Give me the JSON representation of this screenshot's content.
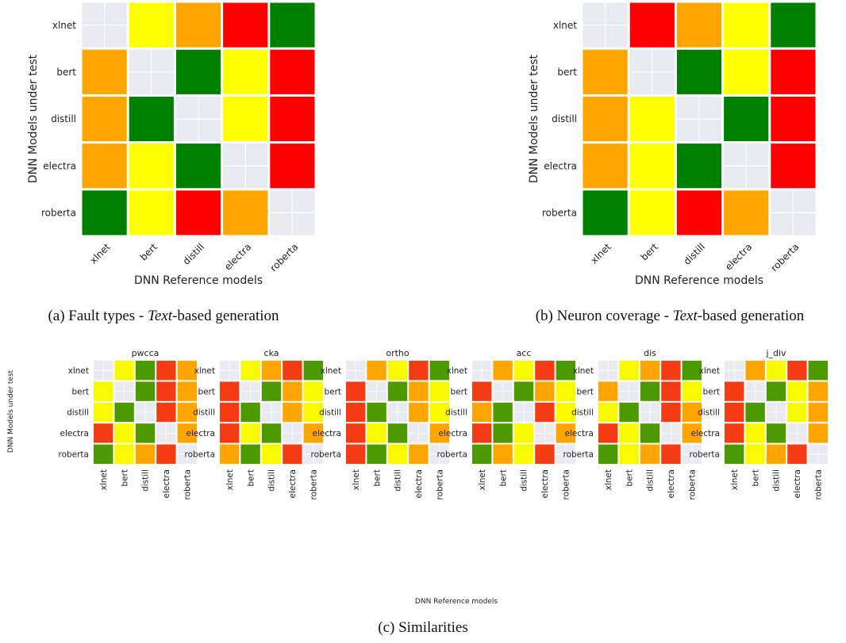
{
  "chart_data": [
    {
      "type": "heatmap",
      "id": "a",
      "caption": {
        "prefix": "(a) Fault types - ",
        "emphasis": "Text",
        "suffix": "-based generation"
      },
      "xlabel": "DNN Reference models",
      "ylabel": "DNN Models under test",
      "x": [
        "xlnet",
        "bert",
        "distill",
        "electra",
        "roberta"
      ],
      "y": [
        "xlnet",
        "bert",
        "distill",
        "electra",
        "roberta"
      ],
      "cells": [
        [
          "diag",
          "yellow",
          "orange",
          "red",
          "green"
        ],
        [
          "orange",
          "diag",
          "green",
          "yellow",
          "red"
        ],
        [
          "orange",
          "green",
          "diag",
          "yellow",
          "red"
        ],
        [
          "orange",
          "yellow",
          "green",
          "diag",
          "red"
        ],
        [
          "green",
          "yellow",
          "red",
          "orange",
          "diag"
        ]
      ]
    },
    {
      "type": "heatmap",
      "id": "b",
      "caption": {
        "prefix": "(b) Neuron coverage - ",
        "emphasis": "Text",
        "suffix": "-based generation"
      },
      "xlabel": "DNN Reference models",
      "ylabel": "DNN Models under test",
      "x": [
        "xlnet",
        "bert",
        "distill",
        "electra",
        "roberta"
      ],
      "y": [
        "xlnet",
        "bert",
        "distill",
        "electra",
        "roberta"
      ],
      "cells": [
        [
          "diag",
          "red",
          "orange",
          "yellow",
          "green"
        ],
        [
          "orange",
          "diag",
          "green",
          "yellow",
          "red"
        ],
        [
          "orange",
          "yellow",
          "diag",
          "green",
          "red"
        ],
        [
          "orange",
          "yellow",
          "green",
          "diag",
          "red"
        ],
        [
          "green",
          "yellow",
          "red",
          "orange",
          "diag"
        ]
      ]
    },
    {
      "type": "heatmap",
      "id": "c",
      "caption": "(c) Similarities",
      "xlabel": "DNN Reference models",
      "ylabel": "DNN Models under test",
      "x": [
        "xlnet",
        "bert",
        "distill",
        "electra",
        "roberta"
      ],
      "y": [
        "xlnet",
        "bert",
        "distill",
        "electra",
        "roberta"
      ],
      "panels": [
        {
          "title": "pwcca",
          "cells": [
            [
              "diag",
              "yellow",
              "green",
              "red",
              "orange"
            ],
            [
              "yellow",
              "diag",
              "green",
              "red",
              "orange"
            ],
            [
              "yellow",
              "green",
              "diag",
              "red",
              "orange"
            ],
            [
              "red",
              "yellow",
              "green",
              "diag",
              "orange"
            ],
            [
              "green",
              "yellow",
              "orange",
              "red",
              "diag"
            ]
          ]
        },
        {
          "title": "cka",
          "cells": [
            [
              "diag",
              "yellow",
              "orange",
              "red",
              "green"
            ],
            [
              "red",
              "diag",
              "green",
              "orange",
              "yellow"
            ],
            [
              "red",
              "green",
              "diag",
              "orange",
              "yellow"
            ],
            [
              "red",
              "yellow",
              "green",
              "diag",
              "orange"
            ],
            [
              "orange",
              "green",
              "yellow",
              "red",
              "diag"
            ]
          ]
        },
        {
          "title": "ortho",
          "cells": [
            [
              "diag",
              "orange",
              "yellow",
              "red",
              "green"
            ],
            [
              "red",
              "diag",
              "green",
              "orange",
              "yellow"
            ],
            [
              "red",
              "green",
              "diag",
              "orange",
              "yellow"
            ],
            [
              "red",
              "yellow",
              "green",
              "diag",
              "orange"
            ],
            [
              "red",
              "green",
              "yellow",
              "orange",
              "diag"
            ]
          ]
        },
        {
          "title": "acc",
          "cells": [
            [
              "diag",
              "orange",
              "yellow",
              "red",
              "green"
            ],
            [
              "red",
              "diag",
              "green",
              "orange",
              "yellow"
            ],
            [
              "orange",
              "green",
              "diag",
              "red",
              "yellow"
            ],
            [
              "red",
              "green",
              "yellow",
              "diag",
              "orange"
            ],
            [
              "green",
              "orange",
              "yellow",
              "red",
              "diag"
            ]
          ]
        },
        {
          "title": "dis",
          "cells": [
            [
              "diag",
              "yellow",
              "orange",
              "red",
              "green"
            ],
            [
              "orange",
              "diag",
              "green",
              "red",
              "yellow"
            ],
            [
              "yellow",
              "green",
              "diag",
              "red",
              "orange"
            ],
            [
              "red",
              "yellow",
              "green",
              "diag",
              "orange"
            ],
            [
              "green",
              "yellow",
              "orange",
              "red",
              "diag"
            ]
          ]
        },
        {
          "title": "j_div",
          "cells": [
            [
              "diag",
              "orange",
              "yellow",
              "red",
              "green"
            ],
            [
              "red",
              "diag",
              "green",
              "yellow",
              "orange"
            ],
            [
              "red",
              "green",
              "diag",
              "yellow",
              "orange"
            ],
            [
              "red",
              "yellow",
              "green",
              "diag",
              "orange"
            ],
            [
              "green",
              "yellow",
              "orange",
              "red",
              "diag"
            ]
          ]
        }
      ]
    }
  ],
  "colors": {
    "green": "#008000",
    "yellow": "#ffff00",
    "orange": "#ffa500",
    "red": "#ff0000",
    "diag": "#eaeaf2",
    "green_small": "#4c9a00",
    "red_small": "#f43b14",
    "orange_small": "#ffa500",
    "yellow_small": "#f9f900"
  }
}
